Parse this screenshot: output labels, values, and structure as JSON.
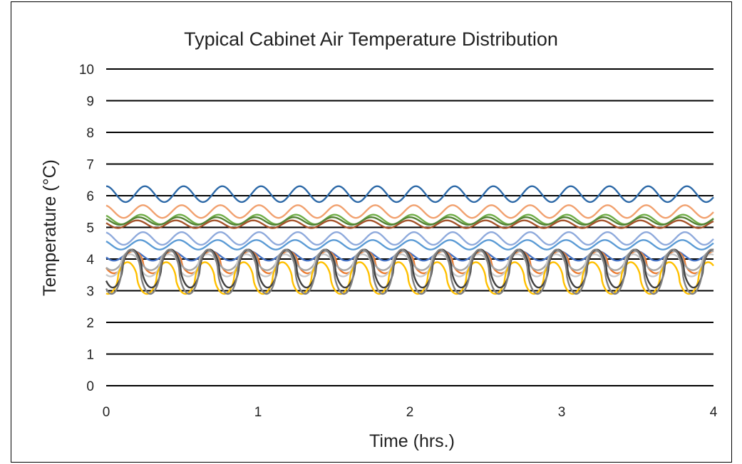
{
  "chart_data": {
    "type": "line",
    "title": "Typical Cabinet Air Temperature Distribution",
    "xlabel": "Time (hrs.)",
    "ylabel": "Temperature (°C)",
    "xlim": [
      0,
      4
    ],
    "ylim": [
      0,
      10
    ],
    "x_ticks": [
      "0",
      "1",
      "2",
      "3",
      "4"
    ],
    "y_ticks": [
      "0",
      "1",
      "2",
      "3",
      "4",
      "5",
      "6",
      "7",
      "8",
      "9",
      "10"
    ],
    "grid": "horizontal",
    "legend": "none",
    "cycle_period_hrs": 0.255,
    "series": [
      {
        "color": "#2e6aa8",
        "mean": 6.05,
        "amplitude": 0.25,
        "phase": 0.0,
        "shape": "sine"
      },
      {
        "color": "#f1a16f",
        "mean": 5.5,
        "amplitude": 0.2,
        "phase": 0.05,
        "shape": "sine"
      },
      {
        "color": "#70ad47",
        "mean": 5.25,
        "amplitude": 0.15,
        "phase": 0.1,
        "shape": "sine"
      },
      {
        "color": "#548235",
        "mean": 5.2,
        "amplitude": 0.12,
        "phase": 0.15,
        "shape": "sine"
      },
      {
        "color": "#a5522a",
        "mean": 5.1,
        "amplitude": 0.12,
        "phase": 0.2,
        "shape": "sine"
      },
      {
        "color": "#8faadc",
        "mean": 4.65,
        "amplitude": 0.2,
        "phase": 0.05,
        "shape": "sine"
      },
      {
        "color": "#5b9bd5",
        "mean": 4.45,
        "amplitude": 0.15,
        "phase": 0.12,
        "shape": "sine"
      },
      {
        "color": "#4472c4",
        "mean": 4.1,
        "amplitude": 0.15,
        "phase": 0.3,
        "shape": "sine"
      },
      {
        "color": "#ed7d31",
        "mean": 3.9,
        "amplitude": 0.35,
        "phase": 0.3,
        "shape": "peaked"
      },
      {
        "color": "#a5a5a5",
        "mean": 3.95,
        "amplitude": 0.3,
        "phase": 0.35,
        "shape": "peaked"
      },
      {
        "color": "#c9c9c9",
        "mean": 3.8,
        "amplitude": 0.35,
        "phase": 0.38,
        "shape": "peaked"
      },
      {
        "color": "#ffc000",
        "mean": 3.4,
        "amplitude": 0.5,
        "phase": 0.45,
        "shape": "peaked"
      },
      {
        "color": "#404040",
        "mean": 3.7,
        "amplitude": 0.6,
        "phase": 0.33,
        "shape": "peaked"
      },
      {
        "color": "#7f7f7f",
        "mean": 3.6,
        "amplitude": 0.7,
        "phase": 0.36,
        "shape": "peaked"
      }
    ]
  }
}
